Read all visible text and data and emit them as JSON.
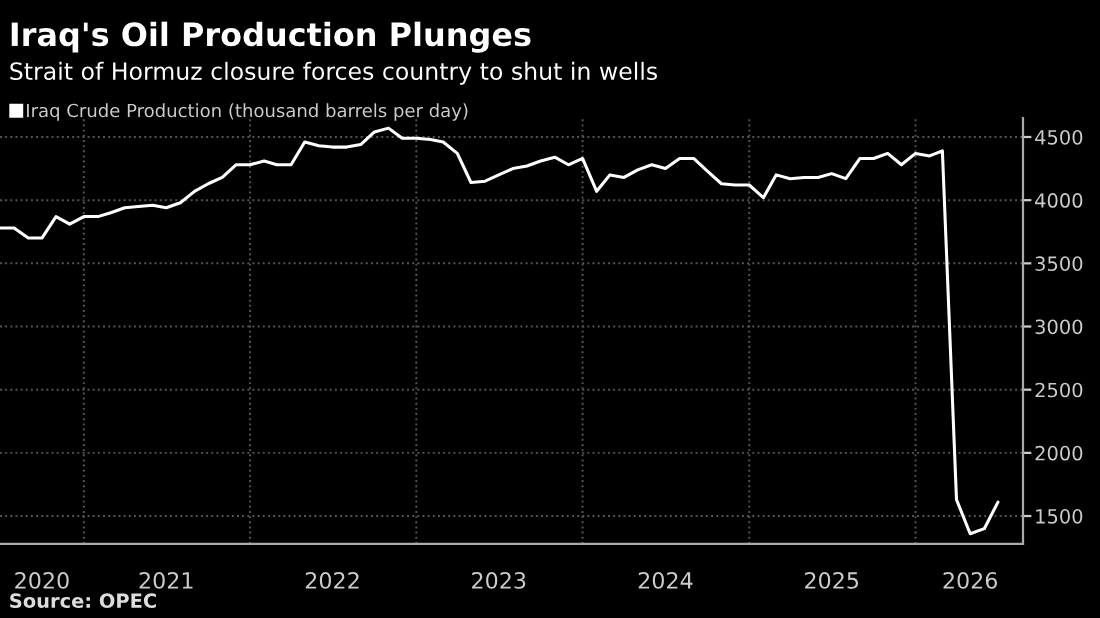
{
  "chart_data": {
    "type": "line",
    "title": "Iraq's Oil Production Plunges",
    "subtitle": "Strait of Hormuz closure forces country to shut in wells",
    "annotations": [
      "Source: OPEC"
    ],
    "x": [
      "2020-07",
      "2020-08",
      "2020-09",
      "2020-10",
      "2020-11",
      "2020-12",
      "2021-01",
      "2021-02",
      "2021-03",
      "2021-04",
      "2021-05",
      "2021-06",
      "2021-07",
      "2021-08",
      "2021-09",
      "2021-10",
      "2021-11",
      "2021-12",
      "2022-01",
      "2022-02",
      "2022-03",
      "2022-04",
      "2022-05",
      "2022-06",
      "2022-07",
      "2022-08",
      "2022-09",
      "2022-10",
      "2022-11",
      "2022-12",
      "2023-01",
      "2023-02",
      "2023-03",
      "2023-04",
      "2023-05",
      "2023-06",
      "2023-07",
      "2023-08",
      "2023-09",
      "2023-10",
      "2023-11",
      "2023-12",
      "2024-01",
      "2024-02",
      "2024-03",
      "2024-04",
      "2024-05",
      "2024-06",
      "2024-07",
      "2024-08",
      "2024-09",
      "2024-10",
      "2024-11",
      "2024-12",
      "2025-01",
      "2025-02",
      "2025-03",
      "2025-04",
      "2025-05",
      "2025-06",
      "2025-07",
      "2025-08",
      "2025-09",
      "2025-10",
      "2025-11",
      "2025-12",
      "2026-01",
      "2026-02",
      "2026-03",
      "2026-04",
      "2026-05",
      "2026-06",
      "2026-07"
    ],
    "series": [
      {
        "name": "Iraq Crude Production (thousand barrels per day)",
        "color": "#ffffff",
        "values": [
          3780,
          3780,
          3700,
          3700,
          3870,
          3810,
          3870,
          3870,
          3900,
          3940,
          3950,
          3960,
          3940,
          3980,
          4070,
          4130,
          4180,
          4280,
          4280,
          4310,
          4280,
          4280,
          4460,
          4430,
          4420,
          4420,
          4440,
          4540,
          4570,
          4490,
          4490,
          4480,
          4460,
          4370,
          4140,
          4150,
          4200,
          4250,
          4270,
          4310,
          4340,
          4280,
          4330,
          4070,
          4200,
          4180,
          4240,
          4280,
          4250,
          4330,
          4330,
          4230,
          4130,
          4120,
          4120,
          4020,
          4200,
          4170,
          4180,
          4180,
          4210,
          4170,
          4330,
          4330,
          4370,
          4280,
          4370,
          4350,
          4390,
          1630,
          1360,
          1400,
          1610
        ]
      }
    ],
    "xlim": [
      "2020-07-01",
      "2026-08-25"
    ],
    "xticks": [
      {
        "value": "2020-10-01",
        "label": "2020"
      },
      {
        "value": "2021-01-01",
        "label": null
      },
      {
        "value": "2021-07-01",
        "label": "2021"
      },
      {
        "value": "2022-01-01",
        "label": null
      },
      {
        "value": "2022-07-01",
        "label": "2022"
      },
      {
        "value": "2023-01-01",
        "label": null
      },
      {
        "value": "2023-07-01",
        "label": "2023"
      },
      {
        "value": "2024-01-01",
        "label": null
      },
      {
        "value": "2024-07-01",
        "label": "2024"
      },
      {
        "value": "2025-01-01",
        "label": null
      },
      {
        "value": "2025-07-01",
        "label": "2025"
      },
      {
        "value": "2026-01-01",
        "label": null
      },
      {
        "value": "2026-05-01",
        "label": "2026"
      }
    ],
    "ylim": [
      1280,
      4650
    ],
    "yticks": [
      1500,
      2000,
      2500,
      3000,
      3500,
      4000,
      4500
    ],
    "grid": true,
    "legend": "top left",
    "line_style": "solid",
    "marker": "none"
  }
}
